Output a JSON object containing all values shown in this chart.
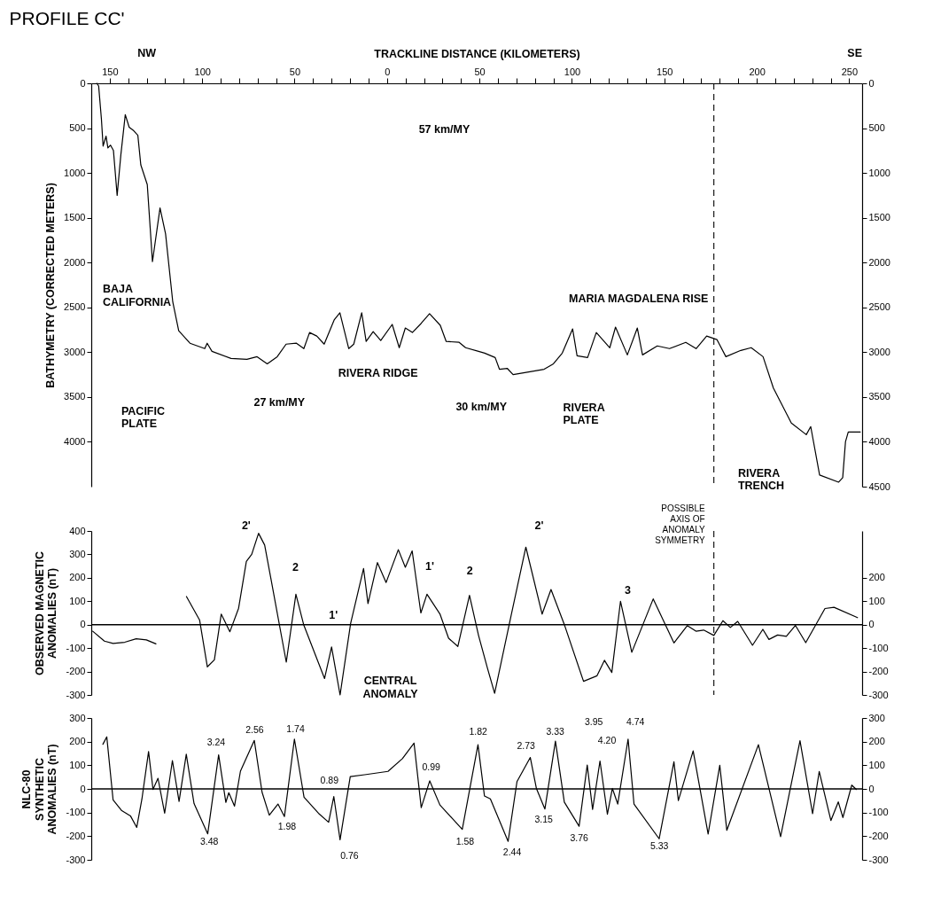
{
  "chart_data": [
    {
      "type": "line",
      "title": "PROFILE CC'",
      "xlabel": "TRACKLINE DISTANCE (KILOMETERS)",
      "ylabel": "BATHYMETRY (CORRECTED METERS)",
      "xlim": [
        -160,
        257
      ],
      "xticks": [
        {
          "value": -150,
          "label": "150"
        },
        {
          "value": -140,
          "label": null
        },
        {
          "value": -130,
          "label": null
        },
        {
          "value": -120,
          "label": null
        },
        {
          "value": -110,
          "label": null
        },
        {
          "value": -100,
          "label": "100"
        },
        {
          "value": -90,
          "label": null
        },
        {
          "value": -80,
          "label": null
        },
        {
          "value": -70,
          "label": null
        },
        {
          "value": -60,
          "label": null
        },
        {
          "value": -50,
          "label": "50"
        },
        {
          "value": -40,
          "label": null
        },
        {
          "value": -30,
          "label": null
        },
        {
          "value": -20,
          "label": null
        },
        {
          "value": -10,
          "label": null
        },
        0,
        {
          "value": 10,
          "label": null
        },
        {
          "value": 20,
          "label": null
        },
        {
          "value": 30,
          "label": null
        },
        {
          "value": 40,
          "label": null
        },
        50,
        {
          "value": 60,
          "label": null
        },
        {
          "value": 70,
          "label": null
        },
        {
          "value": 80,
          "label": null
        },
        {
          "value": 90,
          "label": null
        },
        100,
        {
          "value": 110,
          "label": null
        },
        {
          "value": 120,
          "label": null
        },
        {
          "value": 130,
          "label": null
        },
        {
          "value": 140,
          "label": null
        },
        150,
        {
          "value": 160,
          "label": null
        },
        {
          "value": 170,
          "label": null
        },
        {
          "value": 180,
          "label": null
        },
        {
          "value": 190,
          "label": null
        },
        200,
        {
          "value": 210,
          "label": null
        },
        {
          "value": 220,
          "label": null
        },
        {
          "value": 230,
          "label": null
        },
        {
          "value": 240,
          "label": null
        },
        250
      ],
      "ylim": [
        4500,
        0
      ],
      "yticks": [
        0,
        500,
        1000,
        1500,
        2000,
        2500,
        3000,
        3500,
        4000
      ],
      "y2lim": [
        4500,
        0
      ],
      "y2ticks": [
        0,
        500,
        1000,
        1500,
        2000,
        2500,
        3000,
        3500,
        4000,
        4500
      ],
      "series": [
        {
          "color": "#000000",
          "x": [
            -157,
            -156,
            -154.5,
            -153.6,
            -152,
            -151,
            -149.6,
            -148,
            -146,
            -144,
            -141.6,
            -139.5,
            -137,
            -134.8,
            -133.2,
            -129.7,
            -126.9,
            -122.8,
            -119.8,
            -115.9,
            -112.7,
            -106.6,
            -98.6,
            -97.3,
            -94.7,
            -84.4,
            -75.8,
            -70.3,
            -64.8,
            -59.4,
            -54.6,
            -49,
            -45,
            -41.9,
            -38,
            -34,
            -28.6,
            -25.5,
            -20.7,
            -18,
            -13.7,
            -11.3,
            -7.5,
            -3.4,
            2.8,
            6.6,
            9.9,
            13.7,
            18.4,
            23,
            28.8,
            32,
            39,
            42.5,
            49.5,
            52.8,
            58.5,
            60.8,
            65,
            68.2,
            85,
            90,
            94.8,
            100.4,
            102.8,
            108.5,
            113.2,
            120.5,
            123.6,
            130,
            135.4,
            138.2,
            146.2,
            152.8,
            161.6,
            167.2,
            172.9,
            178.5,
            183.3,
            191.4,
            197,
            203.4,
            209,
            218.7,
            226.8,
            229.2,
            234,
            244.3,
            246.5,
            248,
            249.5,
            256
          ],
          "values": [
            0,
            30,
            400,
            700,
            590,
            720,
            690,
            750,
            1250,
            800,
            350,
            490,
            530,
            580,
            910,
            1130,
            1990,
            1390,
            1680,
            2440,
            2760,
            2900,
            2960,
            2900,
            2990,
            3070,
            3080,
            3050,
            3130,
            3050,
            2910,
            2900,
            2960,
            2780,
            2820,
            2910,
            2640,
            2560,
            2960,
            2910,
            2560,
            2880,
            2770,
            2870,
            2690,
            2950,
            2730,
            2780,
            2680,
            2570,
            2700,
            2880,
            2890,
            2950,
            2990,
            3010,
            3060,
            3190,
            3180,
            3250,
            3190,
            3130,
            3010,
            2740,
            3040,
            3060,
            2780,
            2950,
            2720,
            3030,
            2730,
            3030,
            2930,
            2960,
            2890,
            2960,
            2820,
            2860,
            3050,
            2980,
            2950,
            3050,
            3400,
            3790,
            3920,
            3830,
            4370,
            4450,
            4400,
            4000,
            3890,
            3890
          ]
        }
      ],
      "ref_lines": [
        {
          "axis": "x",
          "value": 176.8,
          "line_style": "dashed"
        }
      ],
      "annotations": [
        "NW",
        "SE",
        "57 km/MY",
        "BAJA\nCALIFORNIA",
        "PACIFIC\nPLATE",
        "RIVERA RIDGE",
        "27 km/MY",
        "30 km/MY",
        "RIVERA\nPLATE",
        "MARIA MAGDALENA RISE",
        "RIVERA\nTRENCH"
      ]
    },
    {
      "type": "line",
      "ylabel": "OBSERVED MAGNETIC\nANOMALIES (nT)",
      "tick_labels": "y",
      "xlim": [
        -160,
        257
      ],
      "ylim": [
        -300,
        400
      ],
      "yticks": [
        -300,
        -200,
        -100,
        0,
        100,
        200,
        300,
        400
      ],
      "y2lim": [
        -300,
        400
      ],
      "y2ticks": [
        -300,
        -200,
        -100,
        0,
        100,
        200
      ],
      "series": [
        {
          "color": "#000000",
          "x": [
            -159.2,
            -152.9,
            -148.2,
            -141.9,
            -135.7,
            -130.2,
            -125,
            -117,
            -108.5,
            -101.4,
            -97.2,
            -93.4,
            -89.7,
            -85,
            -80.3,
            -76.1,
            -73.2,
            -69.5,
            -66.2,
            -62.9,
            -54.5,
            -49.3,
            -45.1,
            -33.8,
            -30,
            -25.4,
            -19.7,
            -12.7,
            -10.3,
            -5.2,
            -0.5,
            6.1,
            9.9,
            13.6,
            18.3,
            21.6,
            28.6,
            33.3,
            38.3,
            44.6,
            49.5,
            54.3,
            58.2,
            67.1,
            75.1,
            83.9,
            88.7,
            95.8,
            106.3,
            113.6,
            117.6,
            121.6,
            126.3,
            132.4,
            144,
            155.2,
            162.4,
            167.1,
            171.3,
            176.8,
            181.7,
            185.7,
            189.7,
            197.7,
            203.3,
            206.6,
            211.3,
            216,
            220.9,
            226.5,
            236.9,
            241.8,
            254.5
          ],
          "values": [
            -28,
            -70,
            -80,
            -75,
            -60,
            -65,
            -82,
            null,
            120,
            20,
            -180,
            -150,
            45,
            -30,
            70,
            270,
            300,
            390,
            340,
            200,
            -160,
            130,
            0,
            -230,
            -95,
            -300,
            5,
            240,
            90,
            265,
            180,
            320,
            245,
            315,
            50,
            130,
            46,
            -58,
            -93,
            125,
            -46,
            -185,
            -293,
            38,
            331,
            45,
            150,
            3,
            -242,
            -218,
            -152,
            -204,
            100,
            -118,
            110,
            -78,
            -4,
            -28,
            -23,
            -46,
            17,
            -12,
            14,
            -88,
            -20,
            -63,
            -44,
            -50,
            -3,
            -77,
            69,
            74,
            30
          ]
        }
      ],
      "ref_lines": [
        {
          "axis": "y",
          "value": 0
        },
        {
          "axis": "x",
          "value": 176.8,
          "line_style": "dashed",
          "label": "POSSIBLE\nAXIS OF\nANOMALY\nSYMMETRY"
        }
      ],
      "annotations": [
        "2'",
        "2",
        "1'",
        "1'",
        "2",
        "2'",
        "3",
        "CENTRAL\nANOMALY"
      ]
    },
    {
      "type": "line",
      "ylabel": "NLC-80\nSYNTHETIC\nANOMALIES (nT)",
      "tick_labels": "y",
      "xlim": [
        -160,
        257
      ],
      "ylim": [
        -300,
        300
      ],
      "yticks": [
        -300,
        -200,
        -100,
        0,
        100,
        200,
        300
      ],
      "y2lim": [
        -300,
        300
      ],
      "y2ticks": [
        -300,
        -200,
        -100,
        0,
        100,
        200,
        300
      ],
      "series": [
        {
          "color": "#000000",
          "x": [
            -153.7,
            -151.6,
            -148.2,
            -143.5,
            -138.8,
            -135.4,
            -132.6,
            -129,
            -126.6,
            -123.9,
            -120.3,
            -116.1,
            -112.5,
            -108.6,
            -104.4,
            -97,
            -91.1,
            -87.2,
            -85.6,
            -82.5,
            -79.3,
            -71.8,
            -67.6,
            -63.7,
            -59,
            -55.5,
            -50.1,
            -44.9,
            -37.1,
            -31.6,
            -28.8,
            -25.4,
            -19.9,
            -12.1,
            0.5,
            8.3,
            14.6,
            18.5,
            23.1,
            28.6,
            40.7,
            49.2,
            52.7,
            55.9,
            65.5,
            70.3,
            77.5,
            80.8,
            85.4,
            91.1,
            95.9,
            103.9,
            108.3,
            111.2,
            115.2,
            119.2,
            121.9,
            124.8,
            130.4,
            133.6,
            147.2,
            155.2,
            157.6,
            165.6,
            173.7,
            180,
            183.8,
            200.9,
            212.9,
            223.4,
            230.2,
            233.8,
            240.1,
            244.1,
            246.6,
            251.4,
            253.8
          ],
          "values": [
            189,
            220,
            -46,
            -92,
            -114,
            -163,
            -43,
            158,
            -2,
            45,
            -103,
            120,
            -53,
            147,
            -62,
            -190,
            144,
            -57,
            -16,
            -73,
            75,
            205,
            -14,
            -111,
            -64,
            -117,
            211,
            -35,
            -103,
            -141,
            -32,
            -215,
            52,
            60,
            74,
            128,
            194,
            -79,
            34,
            -68,
            -171,
            187,
            -30,
            -42,
            -222,
            31,
            133,
            2,
            -85,
            202,
            -56,
            -158,
            101,
            -87,
            118,
            -107,
            2,
            -64,
            211,
            -64,
            -211,
            115,
            -49,
            161,
            -191,
            100,
            -175,
            187,
            -202,
            204,
            -105,
            74,
            -134,
            -55,
            -121,
            16,
            -2
          ]
        }
      ],
      "ref_lines": [
        {
          "axis": "y",
          "value": 0
        }
      ],
      "annotations": [
        "3.24",
        "2.56",
        "1.74",
        "0.89",
        "0.99",
        "1.82",
        "2.73",
        "3.33",
        "3.95",
        "4.20",
        "4.74",
        "3.48",
        "1.98",
        "0.76",
        "1.58",
        "2.44",
        "3.15",
        "3.76",
        "5.33"
      ]
    }
  ]
}
